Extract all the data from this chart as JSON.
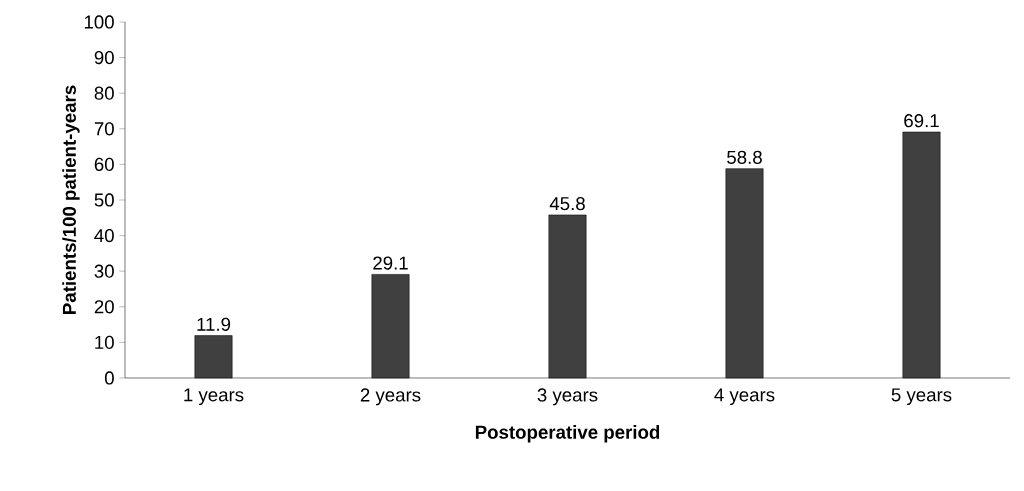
{
  "chart_data": {
    "type": "bar",
    "xlabel": "Postoperative period",
    "ylabel": "Patients/100 patient-years",
    "categories": [
      "1 years",
      "2 years",
      "3 years",
      "4 years",
      "5 years"
    ],
    "values": [
      11.9,
      29.1,
      45.8,
      58.8,
      69.1
    ],
    "color": "#404040",
    "ylim": [
      0,
      100
    ],
    "yticks": [
      0,
      10,
      20,
      30,
      40,
      50,
      60,
      70,
      80,
      90,
      100
    ],
    "data_labels": true
  }
}
